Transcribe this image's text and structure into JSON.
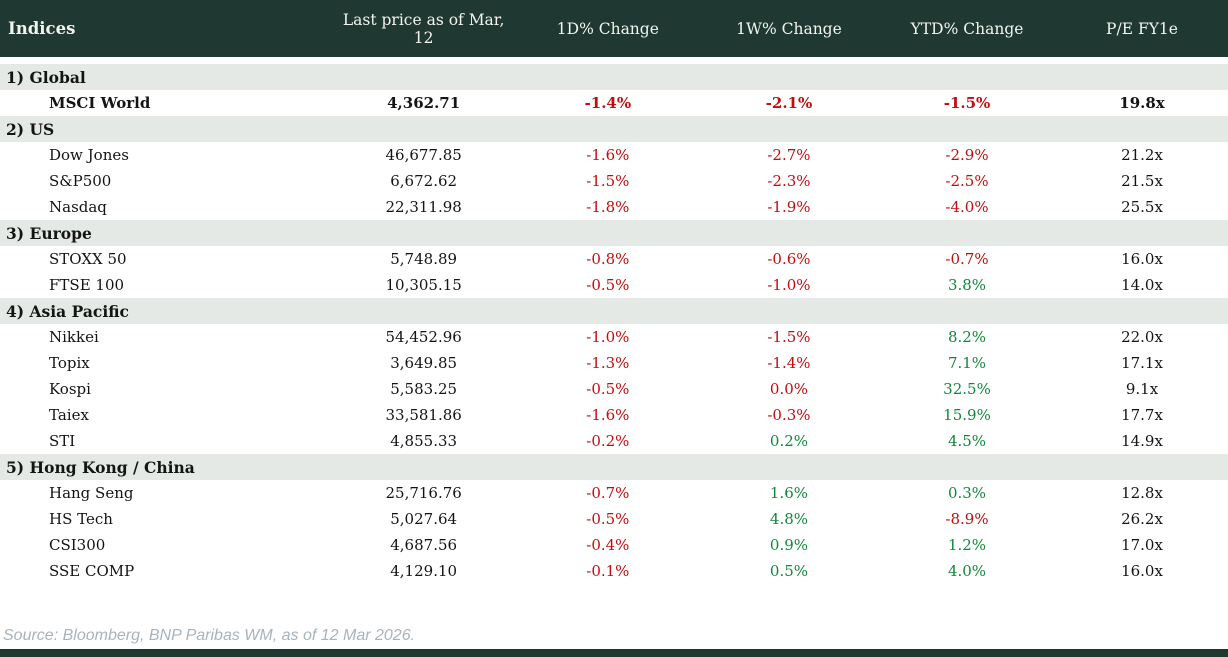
{
  "chart_data": {
    "type": "table",
    "title": "Indices",
    "columns": [
      "Indices",
      "Last price as of Mar, 12",
      "1D% Change",
      "1W% Change",
      "YTD% Change",
      "P/E FY1e"
    ],
    "sections": [
      {
        "label": "1) Global",
        "rows": [
          {
            "name": "MSCI World",
            "bold": true,
            "last_price": "4,362.71",
            "d1": "-1.4%",
            "w1": "-2.1%",
            "ytd": "-1.5%",
            "pe": "19.8x"
          }
        ]
      },
      {
        "label": "2) US",
        "rows": [
          {
            "name": "Dow Jones",
            "last_price": "46,677.85",
            "d1": "-1.6%",
            "w1": "-2.7%",
            "ytd": "-2.9%",
            "pe": "21.2x"
          },
          {
            "name": "S&P500",
            "last_price": "6,672.62",
            "d1": "-1.5%",
            "w1": "-2.3%",
            "ytd": "-2.5%",
            "pe": "21.5x"
          },
          {
            "name": "Nasdaq",
            "last_price": "22,311.98",
            "d1": "-1.8%",
            "w1": "-1.9%",
            "ytd": "-4.0%",
            "pe": "25.5x"
          }
        ]
      },
      {
        "label": "3) Europe",
        "rows": [
          {
            "name": "STOXX 50",
            "last_price": "5,748.89",
            "d1": "-0.8%",
            "w1": "-0.6%",
            "ytd": "-0.7%",
            "pe": "16.0x"
          },
          {
            "name": "FTSE 100",
            "last_price": "10,305.15",
            "d1": "-0.5%",
            "w1": "-1.0%",
            "ytd": "3.8%",
            "pe": "14.0x"
          }
        ]
      },
      {
        "label": "4) Asia Pacific",
        "rows": [
          {
            "name": "Nikkei",
            "last_price": "54,452.96",
            "d1": "-1.0%",
            "w1": "-1.5%",
            "ytd": "8.2%",
            "pe": "22.0x"
          },
          {
            "name": "Topix",
            "last_price": "3,649.85",
            "d1": "-1.3%",
            "w1": "-1.4%",
            "ytd": "7.1%",
            "pe": "17.1x"
          },
          {
            "name": "Kospi",
            "last_price": "5,583.25",
            "d1": "-0.5%",
            "w1": "0.0%",
            "ytd": "32.5%",
            "pe": "9.1x"
          },
          {
            "name": "Taiex",
            "last_price": "33,581.86",
            "d1": "-1.6%",
            "w1": "-0.3%",
            "ytd": "15.9%",
            "pe": "17.7x"
          },
          {
            "name": "STI",
            "last_price": "4,855.33",
            "d1": "-0.2%",
            "w1": "0.2%",
            "ytd": "4.5%",
            "pe": "14.9x"
          }
        ]
      },
      {
        "label": "5) Hong Kong / China",
        "rows": [
          {
            "name": "Hang Seng",
            "last_price": "25,716.76",
            "d1": "-0.7%",
            "w1": "1.6%",
            "ytd": "0.3%",
            "pe": "12.8x"
          },
          {
            "name": "HS Tech",
            "last_price": "5,027.64",
            "d1": "-0.5%",
            "w1": "4.8%",
            "ytd": "-8.9%",
            "pe": "26.2x"
          },
          {
            "name": "CSI300",
            "last_price": "4,687.56",
            "d1": "-0.4%",
            "w1": "0.9%",
            "ytd": "1.2%",
            "pe": "17.0x"
          },
          {
            "name": "SSE COMP",
            "last_price": "4,129.10",
            "d1": "-0.1%",
            "w1": "0.5%",
            "ytd": "4.0%",
            "pe": "16.0x"
          }
        ]
      }
    ]
  },
  "footer": {
    "source": "Source: Bloomberg, BNP Paribas WM, as of 12 Mar 2026."
  },
  "colors": {
    "header_bg": "#1f3932",
    "header_text": "#f4f3ee",
    "section_bg": "#e4e9e6",
    "row_bg": "#ffffff",
    "text": "#141414",
    "negative": "#c20d0d",
    "positive": "#11873c",
    "source": "#a7b3bc"
  }
}
